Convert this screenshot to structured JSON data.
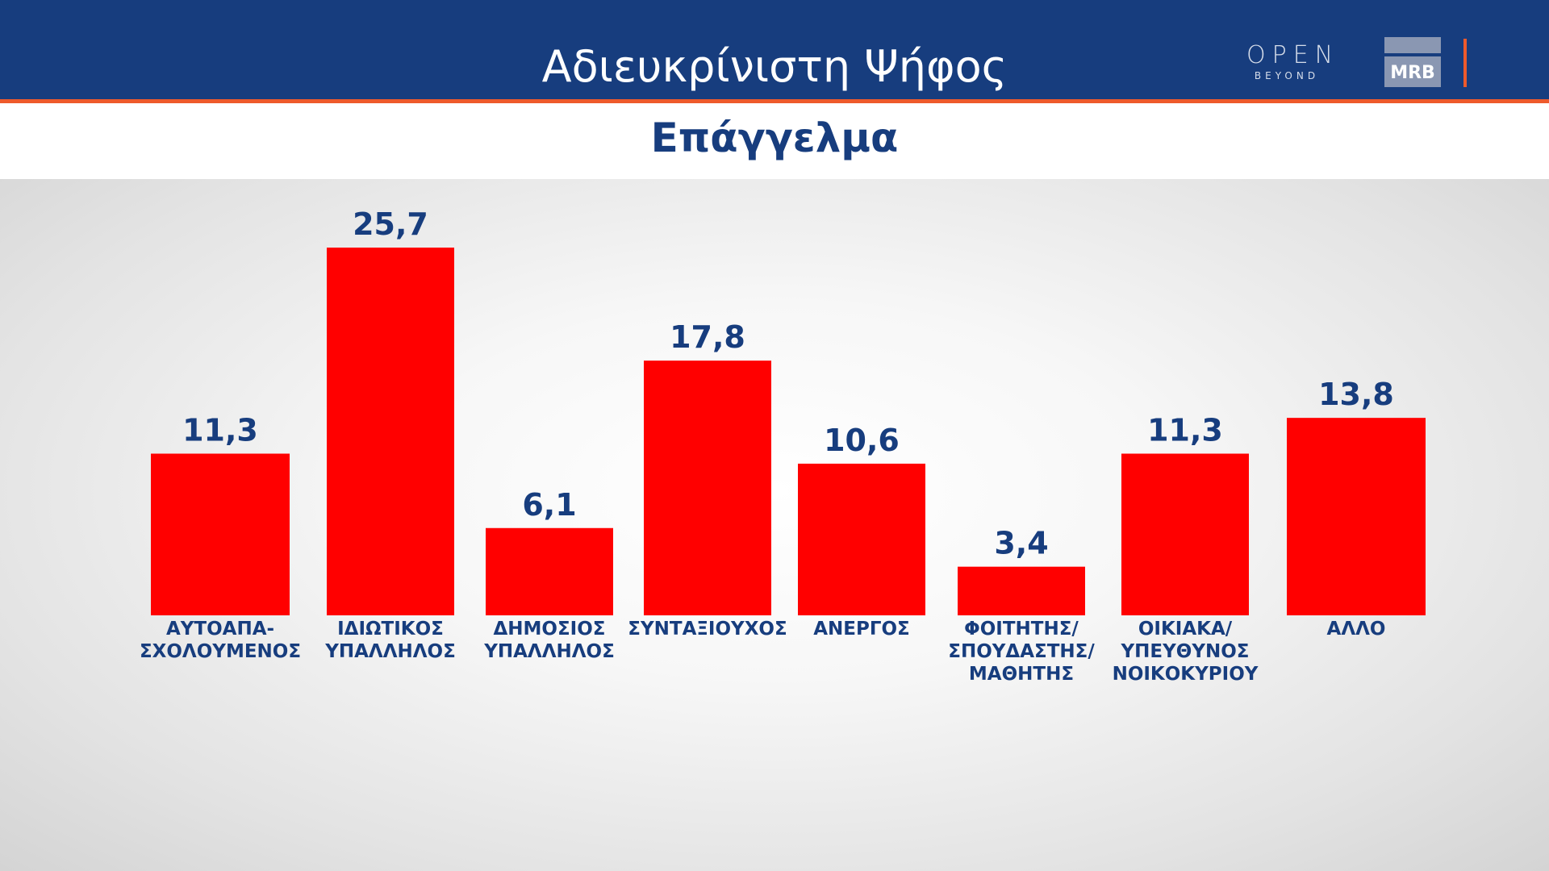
{
  "header": {
    "title": "Αδιευκρίνιστη Ψήφος",
    "subtitle": "Επάγγελμα",
    "logo_open": "OPEN",
    "logo_beyond": "BEYOND",
    "logo_mrb": "MRB"
  },
  "colors": {
    "header_blue": "#173d7e",
    "accent_orange": "#ee5a2c",
    "bar_red": "#ff0000",
    "text_blue": "#173d7e"
  },
  "chart_data": {
    "type": "bar",
    "title": "Επάγγελμα",
    "categories": [
      "ΑΥΤΟΑΠΑ-\nΣΧΟΛΟΥΜΕΝΟΣ",
      "ΙΔΙΩΤΙΚΟΣ\nΥΠΑΛΛΗΛΟΣ",
      "ΔΗΜΟΣΙΟΣ\nΥΠΑΛΛΗΛΟΣ",
      "ΣΥΝΤΑΞΙΟΥΧΟΣ",
      "ΑΝΕΡΓΟΣ",
      "ΦΟΙΤΗΤΗΣ/\nΣΠΟΥΔΑΣΤΗΣ/\nΜΑΘΗΤΗΣ",
      "ΟΙΚΙΑΚΑ/\nΥΠΕΥΘΥΝΟΣ\nΝΟΙΚΟΚΥΡΙΟΥ",
      "ΑΛΛΟ"
    ],
    "values": [
      11.3,
      25.7,
      6.1,
      17.8,
      10.6,
      3.4,
      11.3,
      13.8
    ],
    "value_labels": [
      "11,3",
      "25,7",
      "6,1",
      "17,8",
      "10,6",
      "3,4",
      "11,3",
      "13,8"
    ],
    "ylim": [
      0,
      25.7
    ],
    "grid": false,
    "legend": "none"
  }
}
